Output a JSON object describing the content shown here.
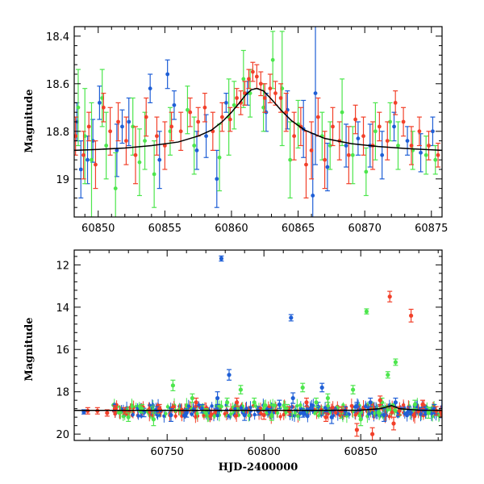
{
  "colors": {
    "blue": "#1f5fd6",
    "green": "#4de64d",
    "red": "#f2402a",
    "model": "#000000"
  },
  "chart_data": [
    {
      "type": "scatter",
      "panel": "top",
      "title": "",
      "xlabel": "",
      "ylabel": "Magnitude",
      "xlim": [
        60848.2,
        60875.8
      ],
      "ylim": [
        19.16,
        18.36
      ],
      "y_inverted": true,
      "xticks": [
        60850,
        60855,
        60860,
        60865,
        60870,
        60875
      ],
      "yticks": [
        18.4,
        18.6,
        18.8,
        19
      ],
      "ytick_labels": [
        "18.4",
        "18.6",
        "18.8",
        "19"
      ],
      "grid": false,
      "legend": "none",
      "series": [
        {
          "color": "blue",
          "x": [
            60848.4,
            60848.7,
            60849.2,
            60849.6,
            60850.1,
            60851.4,
            60851.8,
            60852.3,
            60853.9,
            60854.6,
            60855.2,
            60855.7,
            60857.4,
            60858.1,
            60858.9,
            60859.6,
            60861.2,
            60862.6,
            60864.2,
            60865.4,
            60866.1,
            60866.3,
            60867.2,
            60868.6,
            60869.5,
            60870.4,
            60871.3,
            60872.2,
            60873.2,
            60874.2,
            60875.1
          ],
          "y": [
            18.76,
            18.96,
            18.92,
            18.84,
            18.68,
            18.88,
            18.78,
            18.76,
            18.62,
            18.92,
            18.56,
            18.69,
            18.88,
            18.82,
            19.0,
            18.68,
            18.64,
            18.72,
            18.71,
            18.79,
            19.07,
            18.64,
            18.95,
            18.86,
            18.83,
            18.86,
            18.9,
            18.78,
            18.84,
            18.89,
            18.8
          ],
          "err": [
            0.08,
            0.12,
            0.1,
            0.09,
            0.07,
            0.11,
            0.07,
            0.1,
            0.06,
            0.12,
            0.06,
            0.06,
            0.08,
            0.09,
            0.12,
            0.04,
            0.05,
            0.08,
            0.08,
            0.12,
            0.26,
            0.3,
            0.1,
            0.09,
            0.07,
            0.09,
            0.1,
            0.06,
            0.06,
            0.08,
            0.06
          ]
        },
        {
          "color": "green",
          "x": [
            60848.5,
            60849.0,
            60849.5,
            60850.3,
            60850.6,
            60851.3,
            60852.6,
            60853.1,
            60853.5,
            60854.2,
            60855.4,
            60856.7,
            60857.2,
            60859.1,
            60859.8,
            60860.2,
            60860.9,
            60861.4,
            60862.4,
            60863.1,
            60863.8,
            60864.4,
            60865.0,
            60866.8,
            60867.4,
            60868.3,
            60869.1,
            60870.1,
            60870.8,
            60871.9,
            60872.5,
            60873.6,
            60874.6,
            60875.3
          ],
          "y": [
            18.7,
            18.82,
            18.92,
            18.66,
            18.86,
            19.04,
            18.78,
            18.93,
            18.84,
            18.98,
            18.8,
            18.71,
            18.86,
            18.91,
            18.74,
            18.69,
            18.58,
            18.64,
            18.7,
            18.5,
            18.62,
            18.92,
            18.77,
            18.82,
            18.86,
            18.72,
            18.9,
            18.97,
            18.8,
            18.76,
            18.86,
            18.88,
            18.9,
            18.92
          ],
          "err": [
            0.16,
            0.2,
            0.24,
            0.12,
            0.14,
            0.15,
            0.12,
            0.14,
            0.12,
            0.14,
            0.1,
            0.1,
            0.12,
            0.14,
            0.16,
            0.1,
            0.12,
            0.1,
            0.1,
            0.12,
            0.24,
            0.16,
            0.1,
            0.1,
            0.1,
            0.14,
            0.12,
            0.1,
            0.12,
            0.08,
            0.1,
            0.08,
            0.08,
            0.06
          ]
        },
        {
          "color": "red",
          "x": [
            60848.3,
            60848.9,
            60849.3,
            60849.8,
            60850.4,
            60850.9,
            60851.5,
            60852.1,
            60852.8,
            60853.6,
            60854.4,
            60855.0,
            60855.5,
            60856.2,
            60856.9,
            60857.5,
            60858.0,
            60858.6,
            60859.3,
            60859.9,
            60860.4,
            60860.7,
            60861.0,
            60861.3,
            60861.6,
            60861.9,
            60862.2,
            60862.5,
            60862.9,
            60863.3,
            60863.7,
            60864.1,
            60864.7,
            60865.2,
            60865.6,
            60866.0,
            60866.5,
            60867.0,
            60867.6,
            60868.1,
            60868.8,
            60869.3,
            60869.9,
            60870.6,
            60871.1,
            60871.7,
            60872.3,
            60872.9,
            60873.5,
            60874.1,
            60874.8,
            60875.5
          ],
          "y": [
            18.82,
            18.9,
            18.78,
            18.94,
            18.7,
            18.8,
            18.76,
            18.84,
            18.9,
            18.74,
            18.82,
            18.86,
            18.78,
            18.8,
            18.72,
            18.76,
            18.7,
            18.8,
            18.74,
            18.75,
            18.66,
            18.68,
            18.64,
            18.58,
            18.55,
            18.57,
            18.6,
            18.66,
            18.62,
            18.64,
            18.66,
            18.72,
            18.82,
            18.78,
            18.94,
            18.88,
            18.74,
            18.92,
            18.78,
            18.84,
            18.9,
            18.75,
            18.82,
            18.86,
            18.78,
            18.84,
            18.68,
            18.76,
            18.86,
            18.8,
            18.86,
            18.9
          ],
          "err": [
            0.08,
            0.1,
            0.06,
            0.1,
            0.06,
            0.1,
            0.08,
            0.1,
            0.12,
            0.08,
            0.08,
            0.1,
            0.06,
            0.08,
            0.06,
            0.06,
            0.06,
            0.08,
            0.06,
            0.05,
            0.04,
            0.05,
            0.05,
            0.04,
            0.04,
            0.05,
            0.05,
            0.06,
            0.06,
            0.05,
            0.06,
            0.08,
            0.1,
            0.08,
            0.14,
            0.12,
            0.08,
            0.12,
            0.08,
            0.08,
            0.12,
            0.06,
            0.08,
            0.1,
            0.06,
            0.08,
            0.05,
            0.06,
            0.08,
            0.06,
            0.06,
            0.05
          ]
        }
      ],
      "model": {
        "color": "model",
        "x": [
          60848.2,
          60850,
          60852,
          60854,
          60856,
          60857.5,
          60858.5,
          60859.3,
          60860.0,
          60860.6,
          60861.1,
          60861.5,
          60861.9,
          60862.4,
          60863.0,
          60863.7,
          60864.5,
          60865.5,
          60867,
          60869,
          60871,
          60873,
          60875.8
        ],
        "y": [
          18.88,
          18.876,
          18.87,
          18.86,
          18.845,
          18.82,
          18.795,
          18.76,
          18.72,
          18.68,
          18.645,
          18.625,
          18.62,
          18.63,
          18.665,
          18.71,
          18.755,
          18.795,
          18.83,
          18.852,
          18.864,
          18.872,
          18.88
        ]
      }
    },
    {
      "type": "scatter",
      "panel": "bottom",
      "title": "",
      "xlabel": "HJD-2400000",
      "ylabel": "Magnitude",
      "xlim": [
        60702,
        60892
      ],
      "ylim": [
        20.3,
        11.3
      ],
      "y_inverted": true,
      "xticks": [
        60750,
        60800,
        60850
      ],
      "yticks": [
        12,
        14,
        16,
        18,
        20
      ],
      "grid": false,
      "legend": "none",
      "series": [
        {
          "color": "blue",
          "x": [
            60707,
            60738,
            60745,
            60752,
            60760,
            60768,
            60776,
            60778,
            60782,
            60790,
            60797,
            60803,
            60808,
            60814,
            60815,
            60820,
            60828,
            60830,
            60835,
            60842,
            60848,
            60855,
            60862,
            60868,
            60875,
            60883,
            60888
          ],
          "y": [
            18.95,
            18.98,
            18.9,
            19.1,
            19.0,
            18.8,
            18.3,
            11.7,
            17.2,
            19.1,
            18.9,
            18.95,
            18.6,
            14.5,
            18.3,
            19.0,
            18.7,
            17.8,
            19.2,
            18.9,
            18.7,
            18.5,
            19.1,
            18.5,
            18.9,
            18.9,
            18.8
          ],
          "err": [
            0.1,
            0.2,
            0.2,
            0.3,
            0.2,
            0.2,
            0.3,
            0.12,
            0.25,
            0.25,
            0.2,
            0.15,
            0.2,
            0.15,
            0.25,
            0.2,
            0.2,
            0.2,
            0.3,
            0.2,
            0.2,
            0.2,
            0.3,
            0.2,
            0.2,
            0.2,
            0.2
          ]
        },
        {
          "color": "green",
          "x": [
            60730,
            60737,
            60743,
            60753,
            60763,
            60770,
            60781,
            60788,
            60795,
            60804,
            60812,
            60820,
            60827,
            60833,
            60840,
            60846,
            60850,
            60853,
            60861,
            60864,
            60868,
            60878,
            60885
          ],
          "y": [
            19.2,
            18.8,
            19.3,
            17.7,
            18.3,
            19.0,
            18.5,
            17.9,
            18.5,
            19.1,
            18.8,
            17.8,
            18.5,
            18.3,
            19.0,
            17.9,
            19.3,
            14.2,
            18.5,
            17.2,
            16.6,
            18.6,
            19.0
          ],
          "err": [
            0.2,
            0.2,
            0.3,
            0.25,
            0.2,
            0.2,
            0.2,
            0.2,
            0.2,
            0.25,
            0.2,
            0.2,
            0.2,
            0.2,
            0.25,
            0.2,
            0.3,
            0.12,
            0.2,
            0.15,
            0.15,
            0.2,
            0.25
          ]
        },
        {
          "color": "red",
          "x": [
            60709,
            60714,
            60719,
            60723,
            60728,
            60746,
            60765,
            60786,
            60800,
            60813,
            60822,
            60832,
            60840,
            60848,
            60856,
            60860,
            60865,
            60867,
            60870,
            60876,
            60882,
            60889
          ],
          "y": [
            18.9,
            18.9,
            19.0,
            18.8,
            18.9,
            18.8,
            18.5,
            18.5,
            19.1,
            18.9,
            18.5,
            19.2,
            18.9,
            19.8,
            20.0,
            18.4,
            13.5,
            19.5,
            18.9,
            14.4,
            18.6,
            18.9
          ],
          "err": [
            0.15,
            0.15,
            0.15,
            0.15,
            0.15,
            0.2,
            0.2,
            0.2,
            0.2,
            0.2,
            0.2,
            0.2,
            0.2,
            0.3,
            0.3,
            0.2,
            0.25,
            0.3,
            0.2,
            0.3,
            0.2,
            0.2
          ]
        }
      ],
      "model": {
        "color": "model",
        "x": [
          60702,
          60725,
          60750,
          60775,
          60800,
          60825,
          60850,
          60860,
          60866,
          60870,
          60880,
          60892
        ],
        "y": [
          18.88,
          18.88,
          18.88,
          18.88,
          18.88,
          18.88,
          18.87,
          18.8,
          18.65,
          18.8,
          18.87,
          18.88
        ]
      },
      "dense_band": {
        "x_range": [
          60722,
          60892
        ],
        "y_center": 18.9,
        "y_spread": 0.28
      }
    }
  ]
}
